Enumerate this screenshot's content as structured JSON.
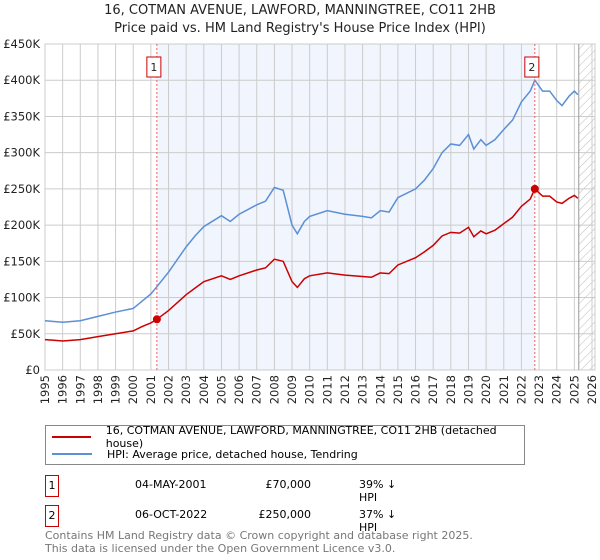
{
  "chart_data": {
    "type": "line",
    "title": "16, COTMAN AVENUE, LAWFORD, MANNINGTREE, CO11 2HB",
    "subtitle": "Price paid vs. HM Land Registry's House Price Index (HPI)",
    "xlim": [
      1995,
      2026
    ],
    "ylim": [
      0,
      450000
    ],
    "x_ticks": [
      "1995",
      "1996",
      "1997",
      "1998",
      "1999",
      "2000",
      "2001",
      "2002",
      "2003",
      "2004",
      "2005",
      "2006",
      "2007",
      "2008",
      "2009",
      "2010",
      "2011",
      "2012",
      "2013",
      "2014",
      "2015",
      "2016",
      "2017",
      "2018",
      "2019",
      "2020",
      "2021",
      "2022",
      "2023",
      "2024",
      "2025",
      "2026"
    ],
    "y_ticks": [
      "£0",
      "£50K",
      "£100K",
      "£150K",
      "£200K",
      "£250K",
      "£300K",
      "£350K",
      "£400K",
      "£450K"
    ],
    "grid": true,
    "series": [
      {
        "name": "16, COTMAN AVENUE, LAWFORD, MANNINGTREE, CO11 2HB (detached house)",
        "color": "#cc0000",
        "x": [
          1995,
          1995.5,
          1996,
          1997,
          1998,
          1999,
          2000,
          2000.5,
          2001,
          2001.34,
          2002,
          2003,
          2003.5,
          2004,
          2005,
          2005.5,
          2006,
          2007,
          2007.5,
          2008,
          2008.5,
          2009,
          2009.3,
          2009.7,
          2010,
          2011,
          2012,
          2013,
          2013.5,
          2014,
          2014.5,
          2015,
          2016,
          2016.5,
          2017,
          2017.5,
          2018,
          2018.5,
          2019,
          2019.3,
          2019.7,
          2020,
          2020.5,
          2021,
          2021.5,
          2022,
          2022.5,
          2022.76,
          2023.2,
          2023.6,
          2024,
          2024.3,
          2024.7,
          2025,
          2025.2
        ],
        "values": [
          42000,
          41000,
          40000,
          42000,
          46000,
          50000,
          54000,
          60000,
          65000,
          70000,
          82000,
          104000,
          113000,
          122000,
          130000,
          125000,
          130000,
          138000,
          141000,
          153000,
          150000,
          122000,
          114000,
          126000,
          130000,
          134000,
          131000,
          129000,
          128000,
          134000,
          133000,
          145000,
          155000,
          163000,
          172000,
          185000,
          190000,
          189000,
          197000,
          184000,
          192000,
          188000,
          193000,
          202000,
          211000,
          226000,
          236000,
          250000,
          240000,
          240000,
          232000,
          230000,
          237000,
          241000,
          237000
        ]
      },
      {
        "name": "HPI: Average price, detached house, Tendring",
        "color": "#5b8fd6",
        "x": [
          1995,
          1995.5,
          1996,
          1997,
          1998,
          1999,
          2000,
          2000.5,
          2001,
          2001.34,
          2002,
          2003,
          2003.5,
          2004,
          2005,
          2005.5,
          2006,
          2007,
          2007.5,
          2008,
          2008.5,
          2009,
          2009.3,
          2009.7,
          2010,
          2011,
          2012,
          2013,
          2013.5,
          2014,
          2014.5,
          2015,
          2016,
          2016.5,
          2017,
          2017.5,
          2018,
          2018.5,
          2019,
          2019.3,
          2019.7,
          2020,
          2020.5,
          2021,
          2021.5,
          2022,
          2022.5,
          2022.76,
          2023.2,
          2023.6,
          2024,
          2024.3,
          2024.7,
          2025,
          2025.2
        ],
        "values": [
          68000,
          67000,
          66000,
          68000,
          74000,
          80000,
          85000,
          95000,
          105000,
          115000,
          135000,
          170000,
          185000,
          198000,
          213000,
          205000,
          215000,
          228000,
          233000,
          252000,
          248000,
          200000,
          188000,
          205000,
          212000,
          220000,
          215000,
          212000,
          210000,
          220000,
          218000,
          238000,
          250000,
          262000,
          278000,
          300000,
          312000,
          310000,
          325000,
          305000,
          318000,
          310000,
          318000,
          332000,
          345000,
          370000,
          385000,
          400000,
          385000,
          385000,
          372000,
          365000,
          378000,
          385000,
          380000
        ]
      }
    ],
    "sales": [
      {
        "label": "1",
        "x": 2001.34,
        "price": 70000
      },
      {
        "label": "2",
        "x": 2022.76,
        "price": 250000
      }
    ],
    "forecast_hatch_from": 2025.25
  },
  "legend": {
    "red": "16, COTMAN AVENUE, LAWFORD, MANNINGTREE, CO11 2HB (detached house)",
    "blue": "HPI: Average price, detached house, Tendring"
  },
  "table": [
    {
      "num": "1",
      "date": "04-MAY-2001",
      "price": "£70,000",
      "hpi": "39% ↓ HPI"
    },
    {
      "num": "2",
      "date": "06-OCT-2022",
      "price": "£250,000",
      "hpi": "37% ↓ HPI"
    }
  ],
  "footer": {
    "line1": "Contains HM Land Registry data © Crown copyright and database right 2025.",
    "line2": "This data is licensed under the Open Government Licence v3.0."
  }
}
